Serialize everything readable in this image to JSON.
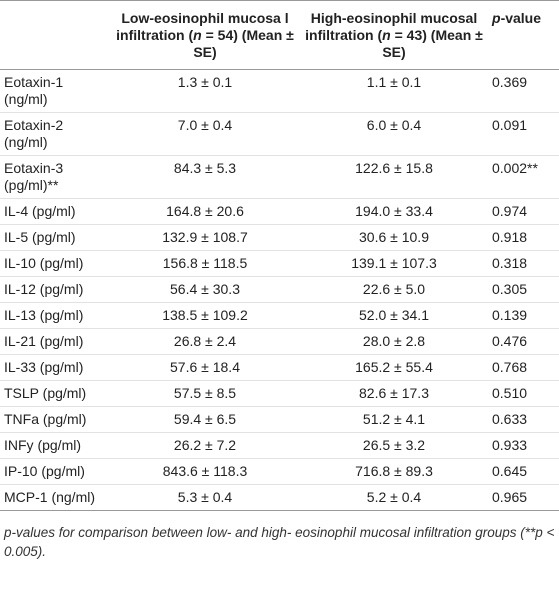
{
  "table": {
    "header": [
      [
        "Low-eosinophil mucosa l infiltration (",
        "n",
        " = 54) (Mean ± SE)"
      ],
      [
        "High-eosinophil mucosal infiltration (",
        "n",
        " = 43) (Mean ± SE)"
      ],
      [
        "p",
        "-value"
      ]
    ],
    "rows": [
      [
        "Eotaxin-1 (ng/ml)",
        "1.3 ± 0.1",
        "1.1 ± 0.1",
        "0.369"
      ],
      [
        "Eotaxin-2 (ng/ml)",
        "7.0 ± 0.4",
        "6.0 ± 0.4",
        "0.091"
      ],
      [
        "Eotaxin-3 (pg/ml)**",
        "84.3 ± 5.3",
        "122.6 ± 15.8",
        "0.002**"
      ],
      [
        "IL-4 (pg/ml)",
        "164.8 ± 20.6",
        "194.0 ± 33.4",
        "0.974"
      ],
      [
        "IL-5 (pg/ml)",
        "132.9 ± 108.7",
        "30.6 ± 10.9",
        "0.918"
      ],
      [
        "IL-10 (pg/ml)",
        "156.8 ± 118.5",
        "139.1 ± 107.3",
        "0.318"
      ],
      [
        "IL-12 (pg/ml)",
        "56.4 ± 30.3",
        "22.6 ± 5.0",
        "0.305"
      ],
      [
        "IL-13 (pg/ml)",
        "138.5 ± 109.2",
        "52.0 ± 34.1",
        "0.139"
      ],
      [
        "IL-21 (pg/ml)",
        "26.8 ± 2.4",
        "28.0 ± 2.8",
        "0.476"
      ],
      [
        "IL-33 (pg/ml)",
        "57.6 ± 18.4",
        "165.2 ± 55.4",
        "0.768"
      ],
      [
        "TSLP (pg/ml)",
        "57.5 ± 8.5",
        "82.6 ± 17.3",
        "0.510"
      ],
      [
        "TNFa (pg/ml)",
        "59.4 ± 6.5",
        "51.2 ± 4.1",
        "0.633"
      ],
      [
        "INFy (pg/ml)",
        "26.2 ± 7.2",
        "26.5 ± 3.2",
        "0.933"
      ],
      [
        "IP-10 (pg/ml)",
        "843.6 ± 118.3",
        "716.8 ± 89.3",
        "0.645"
      ],
      [
        "MCP-1 (ng/ml)",
        "5.3 ± 0.4",
        "5.2 ± 0.4",
        "0.965"
      ]
    ],
    "footnote": "p-values for comparison between low- and high- eosinophil mucosal infiltration groups (**p < 0.005)."
  }
}
